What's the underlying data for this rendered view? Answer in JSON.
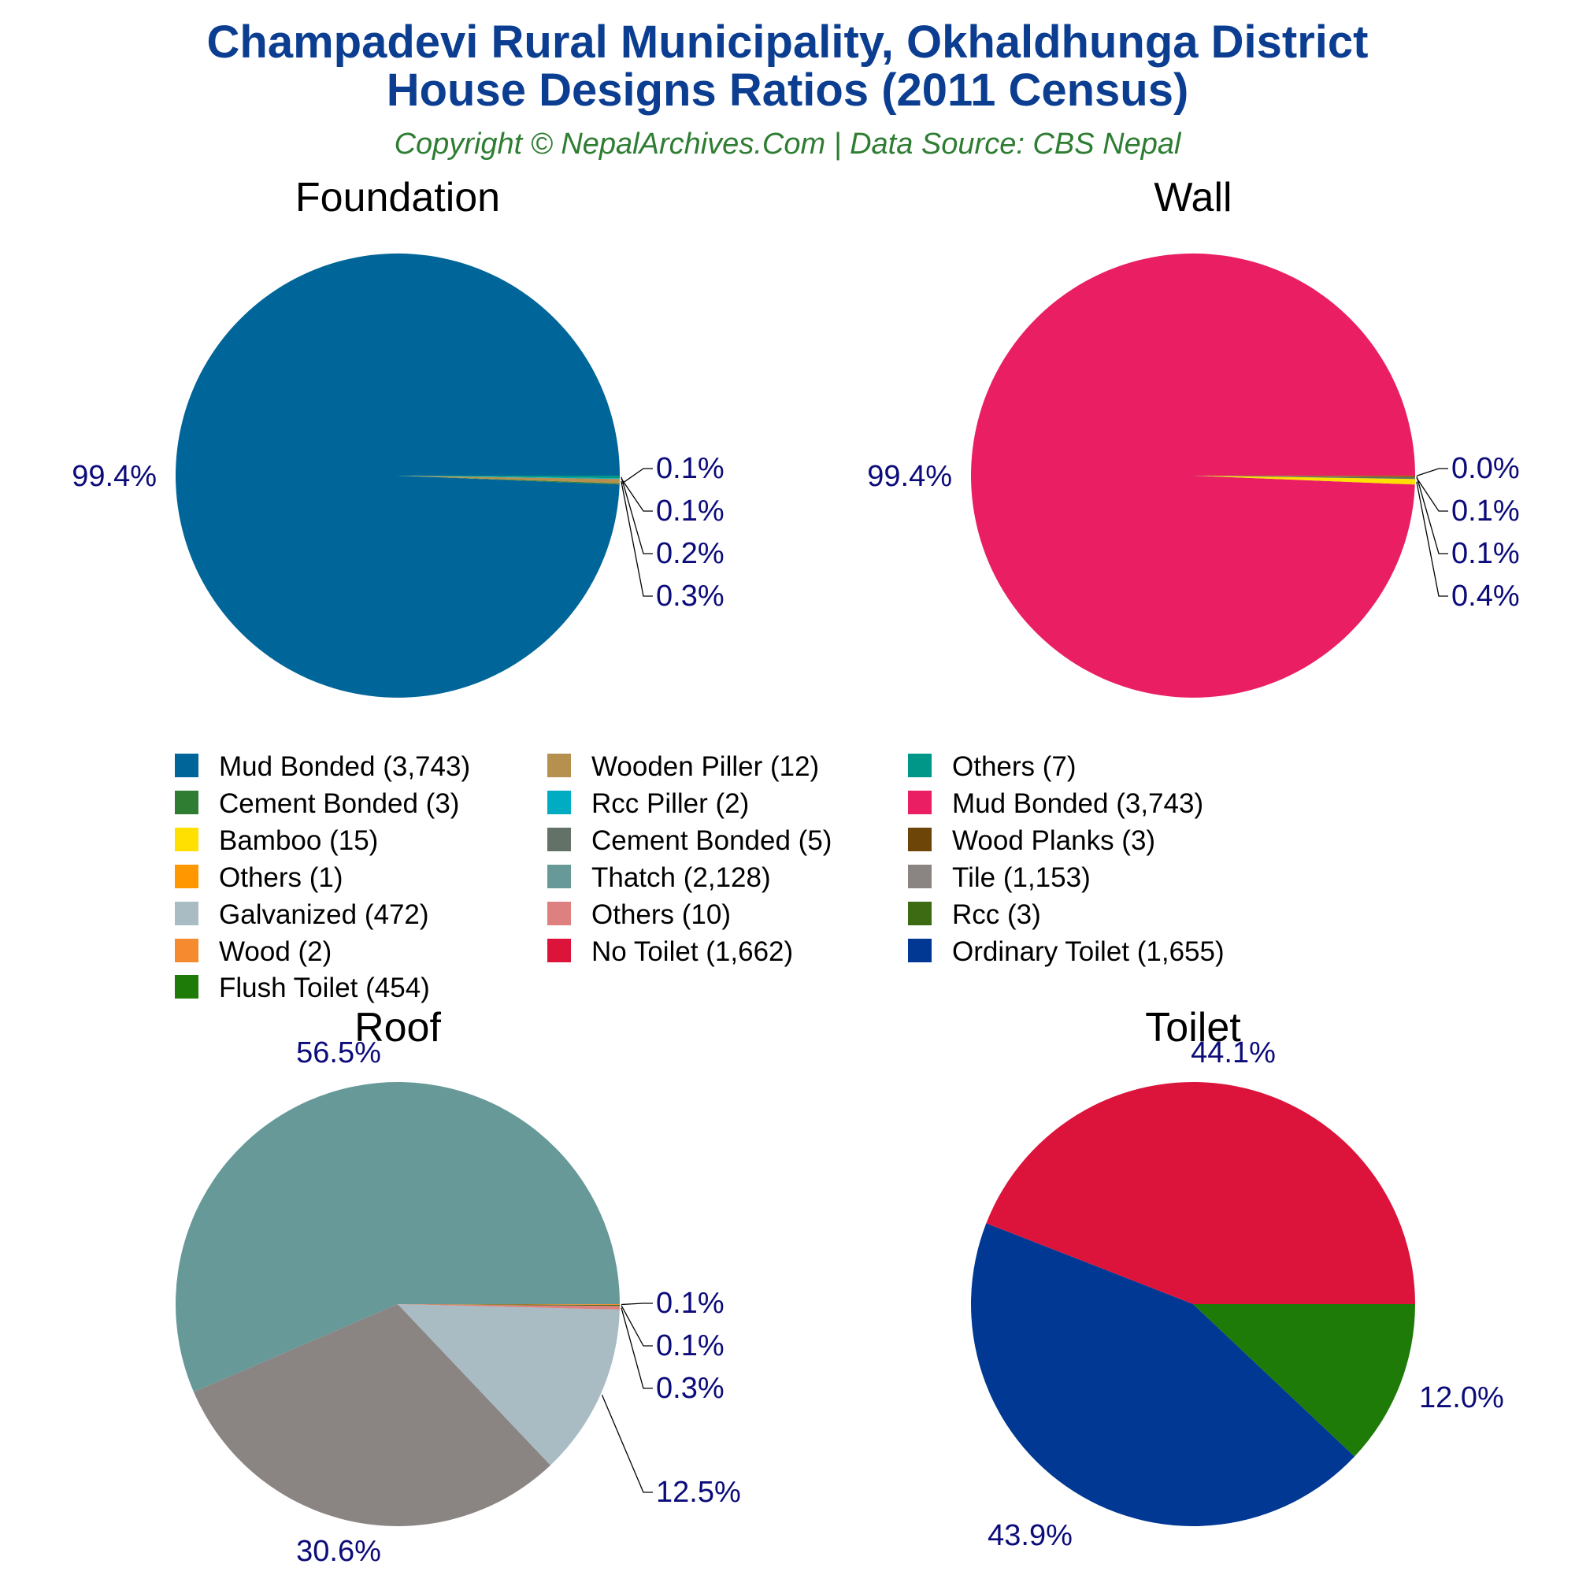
{
  "title_line1": "Champadevi Rural Municipality, Okhaldhunga District",
  "title_line2": "House Designs Ratios (2011 Census)",
  "subtitle": "Copyright © NepalArchives.Com | Data Source: CBS Nepal",
  "chart_data": [
    {
      "type": "pie",
      "title": "Foundation",
      "slices": [
        {
          "label": "Mud Bonded",
          "value": 3743,
          "percent_label": "99.4%",
          "color": "#006699"
        },
        {
          "label": "Cement Bonded",
          "value": 3,
          "percent_label": "0.1%",
          "color": "#2e7d32"
        },
        {
          "label": "Wooden Piller",
          "value": 12,
          "percent_label": "0.3%",
          "color": "#b5904f"
        },
        {
          "label": "Rcc Piller",
          "value": 2,
          "percent_label": "0.1%",
          "color": "#00acc1"
        },
        {
          "label": "Others",
          "value": 7,
          "percent_label": "0.2%",
          "color": "#009688"
        }
      ]
    },
    {
      "type": "pie",
      "title": "Wall",
      "slices": [
        {
          "label": "Mud Bonded",
          "value": 3743,
          "percent_label": "99.4%",
          "color": "#e91e63"
        },
        {
          "label": "Bamboo",
          "value": 15,
          "percent_label": "0.4%",
          "color": "#ffe000"
        },
        {
          "label": "Cement Bonded",
          "value": 5,
          "percent_label": "0.1%",
          "color": "#637269"
        },
        {
          "label": "Wood Planks",
          "value": 3,
          "percent_label": "0.1%",
          "color": "#6d4508"
        },
        {
          "label": "Others",
          "value": 1,
          "percent_label": "0.0%",
          "color": "#ff9800"
        }
      ]
    },
    {
      "type": "pie",
      "title": "Roof",
      "slices": [
        {
          "label": "Thatch",
          "value": 2128,
          "percent_label": "56.5%",
          "color": "#679999"
        },
        {
          "label": "Tile",
          "value": 1153,
          "percent_label": "30.6%",
          "color": "#8a8583"
        },
        {
          "label": "Galvanized",
          "value": 472,
          "percent_label": "12.5%",
          "color": "#a9bcc4"
        },
        {
          "label": "Others",
          "value": 10,
          "percent_label": "0.3%",
          "color": "#dd8080"
        },
        {
          "label": "Rcc",
          "value": 3,
          "percent_label": "0.1%",
          "color": "#3d6b14"
        },
        {
          "label": "Wood",
          "value": 2,
          "percent_label": "0.1%",
          "color": "#f58a2e"
        }
      ]
    },
    {
      "type": "pie",
      "title": "Toilet",
      "slices": [
        {
          "label": "No Toilet",
          "value": 1662,
          "percent_label": "44.1%",
          "color": "#dc143c"
        },
        {
          "label": "Ordinary Toilet",
          "value": 1655,
          "percent_label": "43.9%",
          "color": "#003893"
        },
        {
          "label": "Flush Toilet",
          "value": 454,
          "percent_label": "12.0%",
          "color": "#1e7b08"
        }
      ]
    }
  ],
  "legend": [
    {
      "text": "Mud Bonded (3,743)",
      "color": "#006699"
    },
    {
      "text": "Cement Bonded (3)",
      "color": "#2e7d32"
    },
    {
      "text": "Bamboo (15)",
      "color": "#ffe000"
    },
    {
      "text": "Others (1)",
      "color": "#ff9800"
    },
    {
      "text": "Galvanized (472)",
      "color": "#a9bcc4"
    },
    {
      "text": "Wood (2)",
      "color": "#f58a2e"
    },
    {
      "text": "Flush Toilet (454)",
      "color": "#1e7b08"
    },
    {
      "text": "Wooden Piller (12)",
      "color": "#b5904f"
    },
    {
      "text": "Rcc Piller (2)",
      "color": "#00acc1"
    },
    {
      "text": "Cement Bonded (5)",
      "color": "#637269"
    },
    {
      "text": "Thatch (2,128)",
      "color": "#679999"
    },
    {
      "text": "Others (10)",
      "color": "#dd8080"
    },
    {
      "text": "No Toilet (1,662)",
      "color": "#dc143c"
    },
    {
      "text": "Others (7)",
      "color": "#009688"
    },
    {
      "text": "Mud Bonded (3,743)",
      "color": "#e91e63"
    },
    {
      "text": "Wood Planks (3)",
      "color": "#6d4508"
    },
    {
      "text": "Tile (1,153)",
      "color": "#8a8583"
    },
    {
      "text": "Rcc (3)",
      "color": "#3d6b14"
    },
    {
      "text": "Ordinary Toilet (1,655)",
      "color": "#003893"
    }
  ]
}
